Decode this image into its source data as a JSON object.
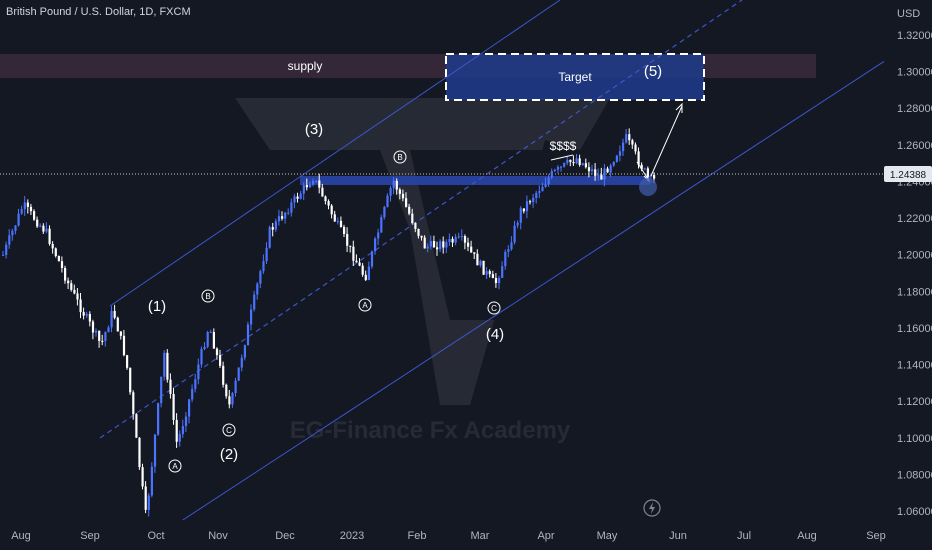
{
  "header": {
    "title": "British Pound / U.S. Dollar, 1D, FXCM"
  },
  "watermark": "EG-Finance Fx Academy",
  "price_axis": {
    "currency": "USD",
    "ticks": [
      "1.32000",
      "1.30000",
      "1.28000",
      "1.26000",
      "1.24000",
      "1.22000",
      "1.20000",
      "1.18000",
      "1.16000",
      "1.14000",
      "1.12000",
      "1.10000",
      "1.08000",
      "1.06000"
    ],
    "current_price": "1.24388"
  },
  "time_axis": {
    "labels": [
      "Aug",
      "Sep",
      "Oct",
      "Nov",
      "Dec",
      "2023",
      "Feb",
      "Mar",
      "Apr",
      "May",
      "Jun",
      "Jul",
      "Aug",
      "Sep"
    ]
  },
  "annotations": {
    "supply": "supply",
    "target": "Target",
    "liquidity": "$$$$",
    "wave_1": "(1)",
    "wave_2": "(2)",
    "wave_3": "(3)",
    "wave_4": "(4)",
    "wave_5": "(5)",
    "sub_a": "A",
    "sub_b": "B",
    "sub_c": "C"
  },
  "colors": {
    "background": "#141823",
    "bull_candle": "#4a73ff",
    "bear_candle": "#ffffff",
    "channel": "#3d56c9",
    "supply_zone": "#3a2c3c",
    "target_zone": "#1f3b8c",
    "support_zone": "#2845a8"
  },
  "chart_data": {
    "type": "candlestick",
    "symbol": "GBPUSD",
    "timeframe": "1D",
    "ylim": [
      1.05,
      1.33
    ],
    "x": [
      "2022-07-25",
      "2022-08-15",
      "2022-09-01",
      "2022-09-26",
      "2022-10-12",
      "2022-10-20",
      "2022-11-10",
      "2022-12-14",
      "2023-01-06",
      "2023-01-23",
      "2023-02-06",
      "2023-03-08",
      "2023-03-21",
      "2023-04-04",
      "2023-04-14",
      "2023-05-10",
      "2023-05-17",
      "2023-05-23"
    ],
    "close": [
      1.2,
      1.22,
      1.16,
      1.07,
      1.16,
      1.11,
      1.2,
      1.24,
      1.19,
      1.24,
      1.2,
      1.18,
      1.23,
      1.25,
      1.24,
      1.265,
      1.245,
      1.244
    ],
    "zones": {
      "supply": [
        1.297,
        1.303
      ],
      "target": [
        1.284,
        1.309
      ],
      "support": [
        1.238,
        1.242
      ]
    },
    "last_price": 1.24388
  }
}
